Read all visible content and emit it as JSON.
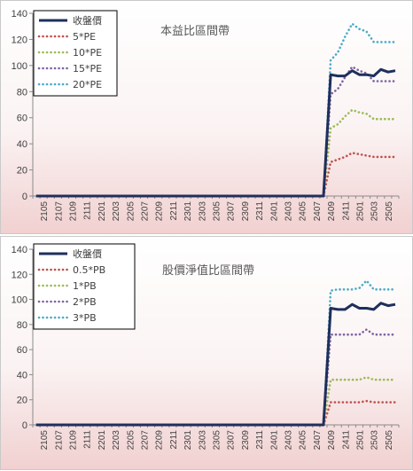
{
  "chart_data": [
    {
      "type": "line",
      "title": "本益比區間帶",
      "ylim": [
        0,
        140
      ],
      "yticks": [
        0,
        20,
        40,
        60,
        80,
        100,
        120,
        140
      ],
      "x": [
        "2104",
        "2105",
        "2106",
        "2107",
        "2108",
        "2109",
        "2110",
        "2111",
        "2112",
        "2201",
        "2202",
        "2203",
        "2204",
        "2205",
        "2206",
        "2207",
        "2208",
        "2209",
        "2210",
        "2211",
        "2212",
        "2301",
        "2302",
        "2303",
        "2304",
        "2305",
        "2306",
        "2307",
        "2308",
        "2309",
        "2310",
        "2311",
        "2312",
        "2401",
        "2402",
        "2403",
        "2404",
        "2405",
        "2406",
        "2407",
        "2408",
        "2409",
        "2410",
        "2411",
        "2412",
        "2501",
        "2502",
        "2503",
        "2504",
        "2505",
        "2506"
      ],
      "xtick_labels": [
        "2105",
        "2107",
        "2109",
        "2111",
        "2201",
        "2203",
        "2205",
        "2207",
        "2209",
        "2211",
        "2301",
        "2303",
        "2305",
        "2307",
        "2309",
        "2311",
        "2401",
        "2403",
        "2405",
        "2407",
        "2409",
        "2411",
        "2501",
        "2503",
        "2505"
      ],
      "legend_position": "top-left",
      "grid": false,
      "series": [
        {
          "name": "收盤價",
          "color": "#1f2f5c",
          "dash": "solid",
          "values": [
            0,
            0,
            0,
            0,
            0,
            0,
            0,
            0,
            0,
            0,
            0,
            0,
            0,
            0,
            0,
            0,
            0,
            0,
            0,
            0,
            0,
            0,
            0,
            0,
            0,
            0,
            0,
            0,
            0,
            0,
            0,
            0,
            0,
            0,
            0,
            0,
            0,
            0,
            0,
            0,
            0,
            93,
            92,
            92,
            96,
            93,
            93,
            92,
            97,
            95,
            96
          ]
        },
        {
          "name": "5*PE",
          "color": "#c0504d",
          "dash": "dot",
          "values": [
            0,
            0,
            0,
            0,
            0,
            0,
            0,
            0,
            0,
            0,
            0,
            0,
            0,
            0,
            0,
            0,
            0,
            0,
            0,
            0,
            0,
            0,
            0,
            0,
            0,
            0,
            0,
            0,
            0,
            0,
            0,
            0,
            0,
            0,
            0,
            0,
            0,
            0,
            0,
            0,
            0,
            26,
            28,
            30,
            33,
            32,
            31,
            30,
            30,
            30,
            30
          ]
        },
        {
          "name": "10*PE",
          "color": "#9bbb59",
          "dash": "dot",
          "values": [
            0,
            0,
            0,
            0,
            0,
            0,
            0,
            0,
            0,
            0,
            0,
            0,
            0,
            0,
            0,
            0,
            0,
            0,
            0,
            0,
            0,
            0,
            0,
            0,
            0,
            0,
            0,
            0,
            0,
            0,
            0,
            0,
            0,
            0,
            0,
            0,
            0,
            0,
            0,
            0,
            0,
            52,
            55,
            61,
            66,
            64,
            63,
            59,
            59,
            59,
            59
          ]
        },
        {
          "name": "15*PE",
          "color": "#8064a2",
          "dash": "dot",
          "values": [
            0,
            0,
            0,
            0,
            0,
            0,
            0,
            0,
            0,
            0,
            0,
            0,
            0,
            0,
            0,
            0,
            0,
            0,
            0,
            0,
            0,
            0,
            0,
            0,
            0,
            0,
            0,
            0,
            0,
            0,
            0,
            0,
            0,
            0,
            0,
            0,
            0,
            0,
            0,
            0,
            0,
            78,
            82,
            91,
            99,
            96,
            94,
            88,
            88,
            88,
            88
          ]
        },
        {
          "name": "20*PE",
          "color": "#4bacc6",
          "dash": "dot",
          "values": [
            0,
            0,
            0,
            0,
            0,
            0,
            0,
            0,
            0,
            0,
            0,
            0,
            0,
            0,
            0,
            0,
            0,
            0,
            0,
            0,
            0,
            0,
            0,
            0,
            0,
            0,
            0,
            0,
            0,
            0,
            0,
            0,
            0,
            0,
            0,
            0,
            0,
            0,
            0,
            0,
            0,
            104,
            110,
            122,
            132,
            128,
            126,
            118,
            118,
            118,
            118
          ]
        }
      ]
    },
    {
      "type": "line",
      "title": "股價淨值比區間帶",
      "ylim": [
        0,
        140
      ],
      "yticks": [
        0,
        20,
        40,
        60,
        80,
        100,
        120,
        140
      ],
      "x": [
        "2104",
        "2105",
        "2106",
        "2107",
        "2108",
        "2109",
        "2110",
        "2111",
        "2112",
        "2201",
        "2202",
        "2203",
        "2204",
        "2205",
        "2206",
        "2207",
        "2208",
        "2209",
        "2210",
        "2211",
        "2212",
        "2301",
        "2302",
        "2303",
        "2304",
        "2305",
        "2306",
        "2307",
        "2308",
        "2309",
        "2310",
        "2311",
        "2312",
        "2401",
        "2402",
        "2403",
        "2404",
        "2405",
        "2406",
        "2407",
        "2408",
        "2409",
        "2410",
        "2411",
        "2412",
        "2501",
        "2502",
        "2503",
        "2504",
        "2505",
        "2506"
      ],
      "xtick_labels": [
        "2105",
        "2107",
        "2109",
        "2111",
        "2201",
        "2203",
        "2205",
        "2207",
        "2209",
        "2211",
        "2301",
        "2303",
        "2305",
        "2307",
        "2309",
        "2311",
        "2401",
        "2403",
        "2405",
        "2407",
        "2409",
        "2411",
        "2501",
        "2503",
        "2505"
      ],
      "legend_position": "top-left",
      "grid": false,
      "series": [
        {
          "name": "收盤價",
          "color": "#1f2f5c",
          "dash": "solid",
          "values": [
            0,
            0,
            0,
            0,
            0,
            0,
            0,
            0,
            0,
            0,
            0,
            0,
            0,
            0,
            0,
            0,
            0,
            0,
            0,
            0,
            0,
            0,
            0,
            0,
            0,
            0,
            0,
            0,
            0,
            0,
            0,
            0,
            0,
            0,
            0,
            0,
            0,
            0,
            0,
            0,
            0,
            93,
            92,
            92,
            96,
            93,
            93,
            92,
            97,
            95,
            96
          ]
        },
        {
          "name": "0.5*PB",
          "color": "#c0504d",
          "dash": "dot",
          "values": [
            0,
            0,
            0,
            0,
            0,
            0,
            0,
            0,
            0,
            0,
            0,
            0,
            0,
            0,
            0,
            0,
            0,
            0,
            0,
            0,
            0,
            0,
            0,
            0,
            0,
            0,
            0,
            0,
            0,
            0,
            0,
            0,
            0,
            0,
            0,
            0,
            0,
            0,
            0,
            0,
            0,
            18,
            18,
            18,
            18,
            18,
            19,
            18,
            18,
            18,
            18
          ]
        },
        {
          "name": "1*PB",
          "color": "#9bbb59",
          "dash": "dot",
          "values": [
            0,
            0,
            0,
            0,
            0,
            0,
            0,
            0,
            0,
            0,
            0,
            0,
            0,
            0,
            0,
            0,
            0,
            0,
            0,
            0,
            0,
            0,
            0,
            0,
            0,
            0,
            0,
            0,
            0,
            0,
            0,
            0,
            0,
            0,
            0,
            0,
            0,
            0,
            0,
            0,
            0,
            36,
            36,
            36,
            36,
            36,
            38,
            36,
            36,
            36,
            36
          ]
        },
        {
          "name": "2*PB",
          "color": "#8064a2",
          "dash": "dot",
          "values": [
            0,
            0,
            0,
            0,
            0,
            0,
            0,
            0,
            0,
            0,
            0,
            0,
            0,
            0,
            0,
            0,
            0,
            0,
            0,
            0,
            0,
            0,
            0,
            0,
            0,
            0,
            0,
            0,
            0,
            0,
            0,
            0,
            0,
            0,
            0,
            0,
            0,
            0,
            0,
            0,
            0,
            72,
            72,
            72,
            72,
            72,
            76,
            72,
            72,
            72,
            72
          ]
        },
        {
          "name": "3*PB",
          "color": "#4bacc6",
          "dash": "dot",
          "values": [
            0,
            0,
            0,
            0,
            0,
            0,
            0,
            0,
            0,
            0,
            0,
            0,
            0,
            0,
            0,
            0,
            0,
            0,
            0,
            0,
            0,
            0,
            0,
            0,
            0,
            0,
            0,
            0,
            0,
            0,
            0,
            0,
            0,
            0,
            0,
            0,
            0,
            0,
            0,
            0,
            0,
            107,
            108,
            108,
            108,
            109,
            115,
            108,
            108,
            108,
            108
          ]
        }
      ]
    }
  ]
}
